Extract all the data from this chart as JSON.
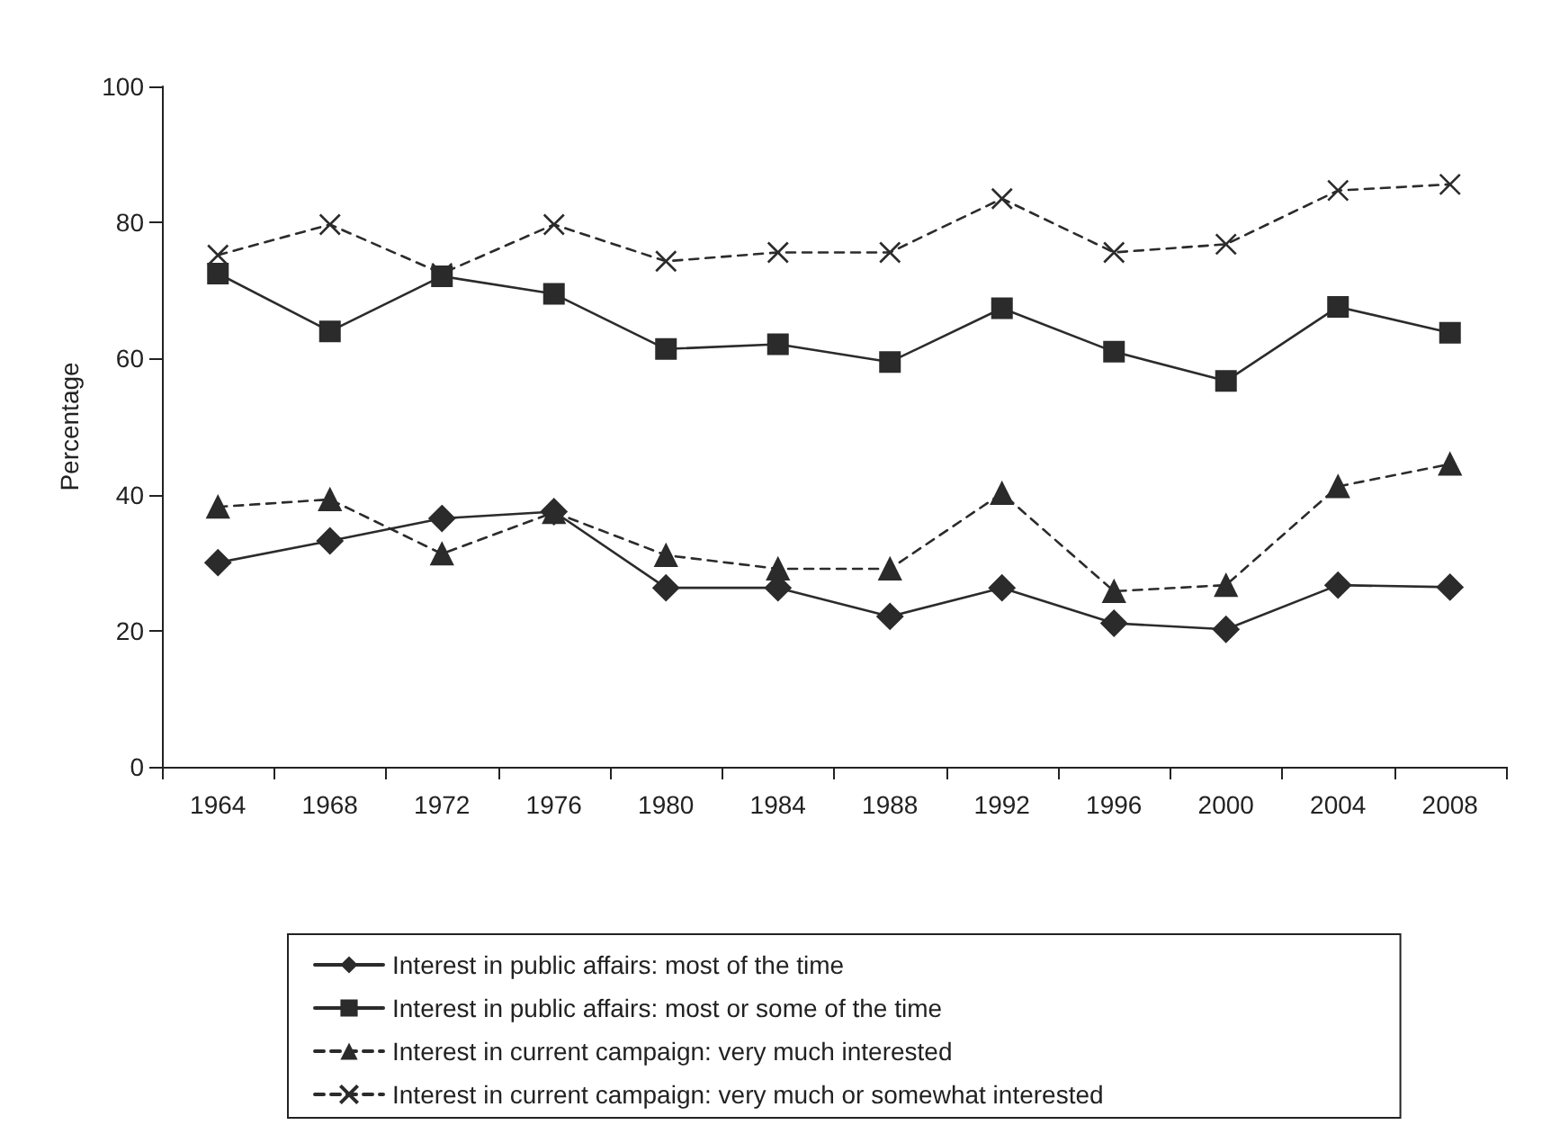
{
  "chart_data": {
    "type": "line",
    "ylabel": "Percentage",
    "categories": [
      "1964",
      "1968",
      "1972",
      "1976",
      "1980",
      "1984",
      "1988",
      "1992",
      "1996",
      "2000",
      "2004",
      "2008"
    ],
    "ylim": [
      0,
      100
    ],
    "yticks": [
      0,
      20,
      40,
      60,
      80,
      100
    ],
    "grid": false,
    "legend": "bottom",
    "series": [
      {
        "name": "Interest in public affairs: most of the time",
        "color": "#2b2b2b",
        "marker": "diamond",
        "line_style": "solid",
        "values": [
          30.0,
          33.2,
          36.5,
          37.5,
          26.3,
          26.3,
          22.1,
          26.3,
          21.1,
          20.2,
          26.7,
          26.4
        ]
      },
      {
        "name": "Interest in public affairs: most or some of the time",
        "color": "#2b2b2b",
        "marker": "square",
        "line_style": "solid",
        "values": [
          72.5,
          64.0,
          72.1,
          69.5,
          61.4,
          62.1,
          59.5,
          67.4,
          61.0,
          56.7,
          67.6,
          63.8
        ]
      },
      {
        "name": "Interest in current campaign: very much interested",
        "color": "#2b2b2b",
        "marker": "triangle",
        "line_style": "dashed",
        "values": [
          38.2,
          39.3,
          31.3,
          37.4,
          31.1,
          29.1,
          29.1,
          40.2,
          25.8,
          26.7,
          41.2,
          44.5
        ]
      },
      {
        "name": "Interest in current campaign: very much or somewhat interested",
        "color": "#2b2b2b",
        "marker": "cross",
        "line_style": "dashed",
        "values": [
          75.2,
          79.7,
          72.5,
          79.7,
          74.3,
          75.6,
          75.6,
          83.5,
          75.6,
          76.8,
          84.7,
          85.6
        ]
      }
    ]
  }
}
